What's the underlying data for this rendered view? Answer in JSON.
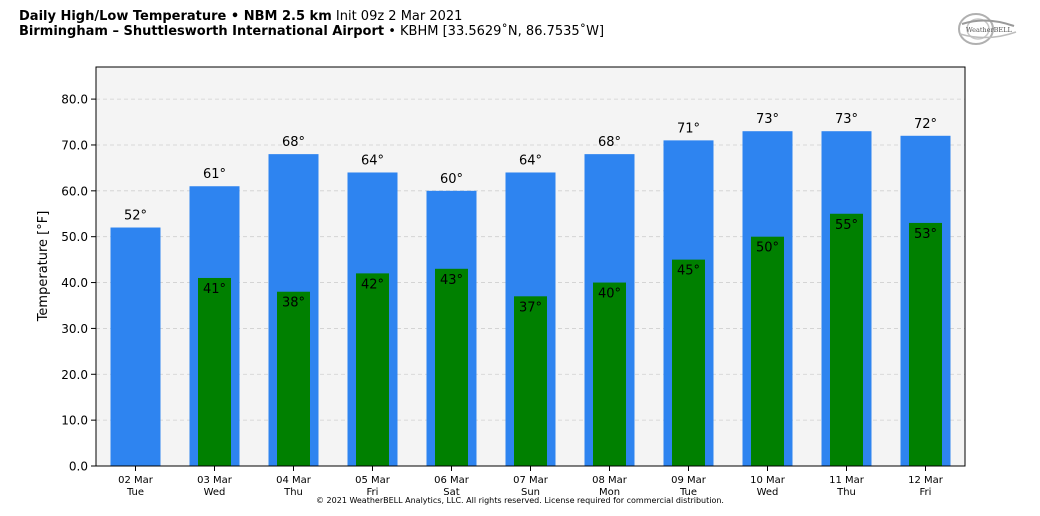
{
  "header": {
    "title_bold": "Daily High/Low Temperature • NBM 2.5 km",
    "title_init": "Init 09z 2 Mar 2021",
    "subtitle_bold": "Birmingham – Shuttlesworth International Airport",
    "subtitle_station": "• KBHM [33.5629˚N, 86.7535˚W]"
  },
  "logo": {
    "icon": "weatherbell-logo",
    "text": "WeatherBELL"
  },
  "copyright": "© 2021 WeatherBELL Analytics, LLC. All rights reserved. License required for commercial distribution.",
  "chart_data": {
    "type": "bar",
    "ylabel": "Temperature [°F]",
    "ylim": [
      0,
      87
    ],
    "yticks": [
      0,
      10,
      20,
      30,
      40,
      50,
      60,
      70,
      80
    ],
    "ytick_labels": [
      "0.0",
      "10.0",
      "20.0",
      "30.0",
      "40.0",
      "50.0",
      "60.0",
      "70.0",
      "80.0"
    ],
    "grid": true,
    "categories": [
      "02 Mar",
      "03 Mar",
      "04 Mar",
      "05 Mar",
      "06 Mar",
      "07 Mar",
      "08 Mar",
      "09 Mar",
      "10 Mar",
      "11 Mar",
      "12 Mar"
    ],
    "weekdays": [
      "Tue",
      "Wed",
      "Thu",
      "Fri",
      "Sat",
      "Sun",
      "Mon",
      "Tue",
      "Wed",
      "Thu",
      "Fri"
    ],
    "series": [
      {
        "key": "high",
        "values": [
          52,
          61,
          68,
          64,
          60,
          64,
          68,
          71,
          73,
          73,
          72
        ],
        "labels": [
          "52°",
          "61°",
          "68°",
          "64°",
          "60°",
          "64°",
          "68°",
          "71°",
          "73°",
          "73°",
          "72°"
        ],
        "color": "#2e84f0"
      },
      {
        "key": "low",
        "values": [
          null,
          41,
          38,
          42,
          43,
          37,
          40,
          45,
          50,
          55,
          53
        ],
        "labels": [
          "",
          "41°",
          "38°",
          "42°",
          "43°",
          "37°",
          "40°",
          "45°",
          "50°",
          "55°",
          "53°"
        ],
        "color": "#008000"
      }
    ],
    "background": "#f4f4f4"
  }
}
